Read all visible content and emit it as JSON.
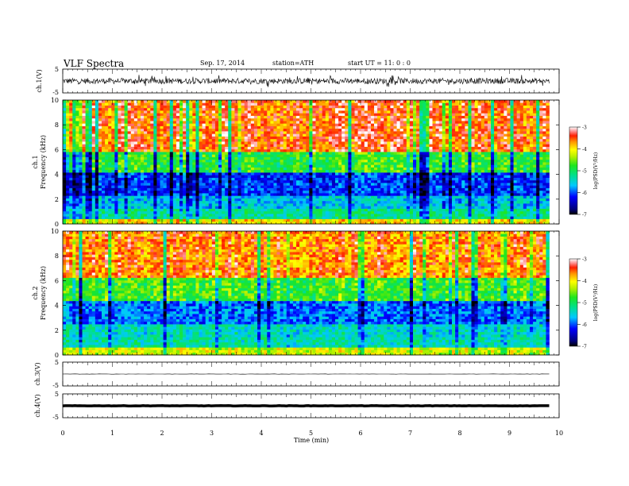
{
  "header": {
    "title": "VLF Spectra",
    "date": "Sep. 17, 2014",
    "station": "station=ATH",
    "start_ut": "start  UT =   11: 0  : 0"
  },
  "chart_data": [
    {
      "id": "ch1-waveform",
      "type": "line",
      "ylabel": "ch.1(V)",
      "ylim": [
        -5,
        5
      ],
      "yticks": [
        "5",
        "-5"
      ],
      "xlim": [
        0,
        10
      ],
      "data_extent_min": [
        0,
        9.8
      ],
      "signal_description": "dense noisy waveform, amplitude roughly ±1.5 V with spikes to ±2.5 V",
      "color": "#000000"
    },
    {
      "id": "ch1-spectrogram",
      "type": "heatmap",
      "ylabel_channel": "ch.1",
      "ylabel": "Frequency  (kHz)",
      "ylim": [
        0,
        10
      ],
      "yticks": [
        "0",
        "2",
        "4",
        "6",
        "8",
        "10"
      ],
      "xlim": [
        0,
        10
      ],
      "data_extent_min": [
        0,
        9.8
      ],
      "frequency_bands_khz": [
        {
          "from": 0,
          "to": 0.5,
          "level": -4
        },
        {
          "from": 0.5,
          "to": 1.2,
          "level": -5.2
        },
        {
          "from": 1.2,
          "to": 2.2,
          "level": -5.6
        },
        {
          "from": 2.2,
          "to": 4.2,
          "level": -6.1
        },
        {
          "from": 4.2,
          "to": 5.8,
          "level": -4.8
        },
        {
          "from": 5.8,
          "to": 10,
          "level": -3.5
        }
      ],
      "colorbar": {
        "label": "log(PSD(V²/Hz)",
        "min": -7,
        "max": -3,
        "ticks": [
          "-3",
          "-4",
          "-5",
          "-6",
          "-7"
        ]
      }
    },
    {
      "id": "ch2-spectrogram",
      "type": "heatmap",
      "ylabel_channel": "ch.2",
      "ylabel": "Frequency  (kHz)",
      "ylim": [
        0,
        10
      ],
      "yticks": [
        "0",
        "2",
        "4",
        "6",
        "8",
        "10"
      ],
      "xlim": [
        0,
        10
      ],
      "data_extent_min": [
        0,
        9.8
      ],
      "frequency_bands_khz": [
        {
          "from": 0,
          "to": 0.6,
          "level": -4.2
        },
        {
          "from": 0.6,
          "to": 1.4,
          "level": -5.3
        },
        {
          "from": 1.4,
          "to": 2.6,
          "level": -5.4
        },
        {
          "from": 2.6,
          "to": 4.4,
          "level": -5.9
        },
        {
          "from": 4.4,
          "to": 6.2,
          "level": -4.7
        },
        {
          "from": 6.2,
          "to": 10,
          "level": -3.6
        }
      ],
      "colorbar": {
        "label": "log(PSD(V²/Hz)",
        "min": -7,
        "max": -3,
        "ticks": [
          "-3",
          "-4",
          "-5",
          "-6",
          "-7"
        ]
      }
    },
    {
      "id": "ch3-waveform",
      "type": "line",
      "ylabel": "ch.3(V)",
      "ylim": [
        -5,
        5
      ],
      "yticks": [
        "5",
        "-5"
      ],
      "xlim": [
        0,
        10
      ],
      "data_extent_min": [
        0,
        9.8
      ],
      "signal_description": "nearly flat trace at about 0 V",
      "color": "#000000"
    },
    {
      "id": "ch4-waveform",
      "type": "line",
      "ylabel": "ch.4(V)",
      "ylim": [
        -5,
        5
      ],
      "yticks": [
        "5",
        "-5"
      ],
      "xlim": [
        0,
        10
      ],
      "data_extent_min": [
        0,
        9.8
      ],
      "signal_description": "thick flat trace at about 0 V",
      "color": "#000000"
    }
  ],
  "x_axis": {
    "label": "Time  (min)",
    "ticks": [
      "0",
      "1",
      "2",
      "3",
      "4",
      "5",
      "6",
      "7",
      "8",
      "9",
      "10"
    ]
  }
}
